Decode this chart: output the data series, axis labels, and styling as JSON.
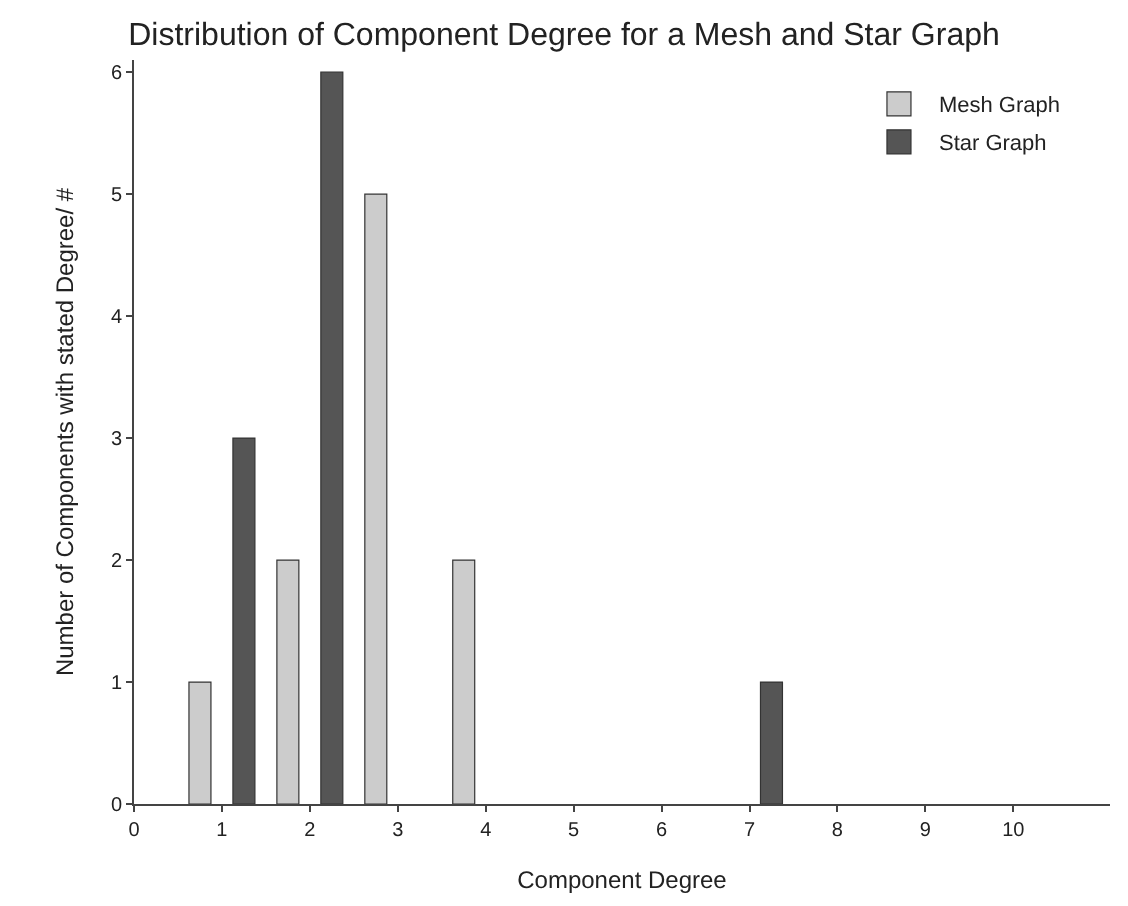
{
  "chart_data": {
    "type": "bar",
    "title": "Distribution of Component Degree for a Mesh and Star Graph",
    "xlabel": "Component Degree",
    "ylabel": "Number of Components with stated Degree/ #",
    "series": [
      {
        "name": "Mesh Graph",
        "color": "#cccccc",
        "x": [
          1,
          2,
          3,
          4
        ],
        "values": [
          1,
          2,
          5,
          2
        ]
      },
      {
        "name": "Star Graph",
        "color": "#555555",
        "x": [
          1,
          2,
          7
        ],
        "values": [
          3,
          6,
          1
        ]
      }
    ],
    "xlim": [
      0,
      11.1
    ],
    "xticks": [
      0,
      1,
      2,
      3,
      4,
      5,
      6,
      7,
      8,
      9,
      10
    ],
    "ylim": [
      0,
      6.1
    ],
    "yticks": [
      0,
      1,
      2,
      3,
      4,
      5,
      6
    ],
    "legend": "top right"
  }
}
